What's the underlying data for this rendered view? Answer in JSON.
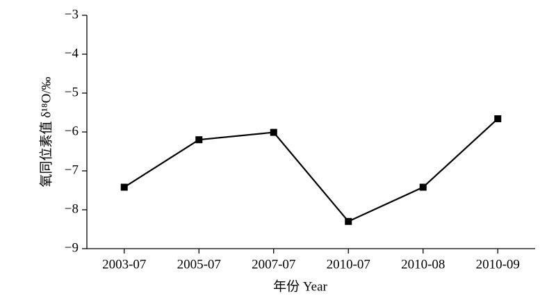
{
  "chart_data": {
    "type": "line",
    "x_label": "年份 Year",
    "y_label": "氧同位素值 δ¹⁸O/‰",
    "categories": [
      "2003-07",
      "2005-07",
      "2007-07",
      "2010-07",
      "2010-08",
      "2010-09"
    ],
    "series": [
      {
        "color": "#000000",
        "values": [
          -7.42,
          -6.2,
          -6.01,
          -8.3,
          -7.42,
          -5.66
        ]
      }
    ],
    "ylim": [
      -9,
      -3
    ],
    "yticks": [
      {
        "value": -9,
        "label": "−9"
      },
      {
        "value": -8,
        "label": "−8"
      },
      {
        "value": -7,
        "label": "−7"
      },
      {
        "value": -6,
        "label": "−6"
      },
      {
        "value": -5,
        "label": "−5"
      },
      {
        "value": -4,
        "label": "−4"
      },
      {
        "value": -3,
        "label": "−3"
      }
    ],
    "grid": false
  }
}
